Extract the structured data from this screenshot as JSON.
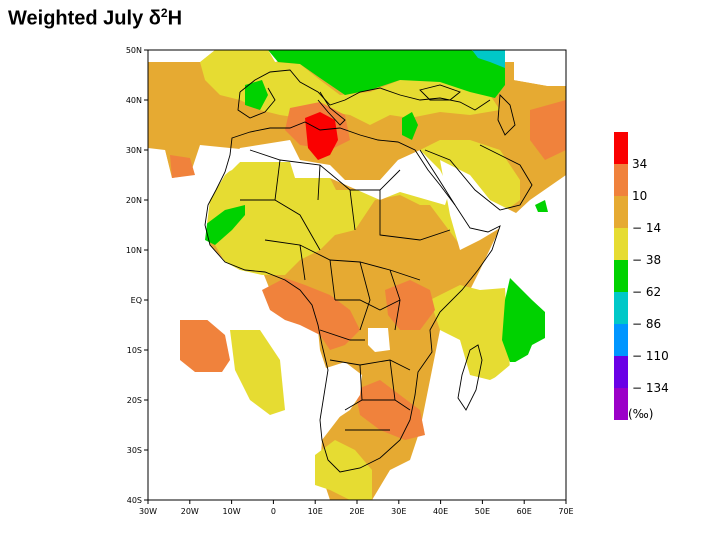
{
  "title": {
    "prefix": "Weighted July ",
    "delta": "δ",
    "sup": "2",
    "symbol": "H"
  },
  "axes": {
    "lon_ticks": [
      "30W",
      "20W",
      "10W",
      "0",
      "10E",
      "20E",
      "30E",
      "40E",
      "50E",
      "60E",
      "70E"
    ],
    "lat_ticks": [
      "50N",
      "40N",
      "30N",
      "20N",
      "10N",
      "EQ",
      "10S",
      "20S",
      "30S",
      "40S"
    ]
  },
  "legend": {
    "colors": [
      "#9b00c8",
      "#6a00e6",
      "#0096ff",
      "#00c8c8",
      "#00d200",
      "#e6dc32",
      "#e6aa32",
      "#f0823c",
      "#fa0000"
    ],
    "labels": [
      "-134",
      "-110",
      "-86",
      "-62",
      "-38",
      "-14",
      "10",
      "34"
    ],
    "unit": "(‰)"
  },
  "palette": {
    "green": "#00d200",
    "yellow": "#e6dc32",
    "lightorange": "#e6aa32",
    "orange": "#f0823c",
    "red": "#fa0000",
    "cyan": "#00c8c8"
  }
}
